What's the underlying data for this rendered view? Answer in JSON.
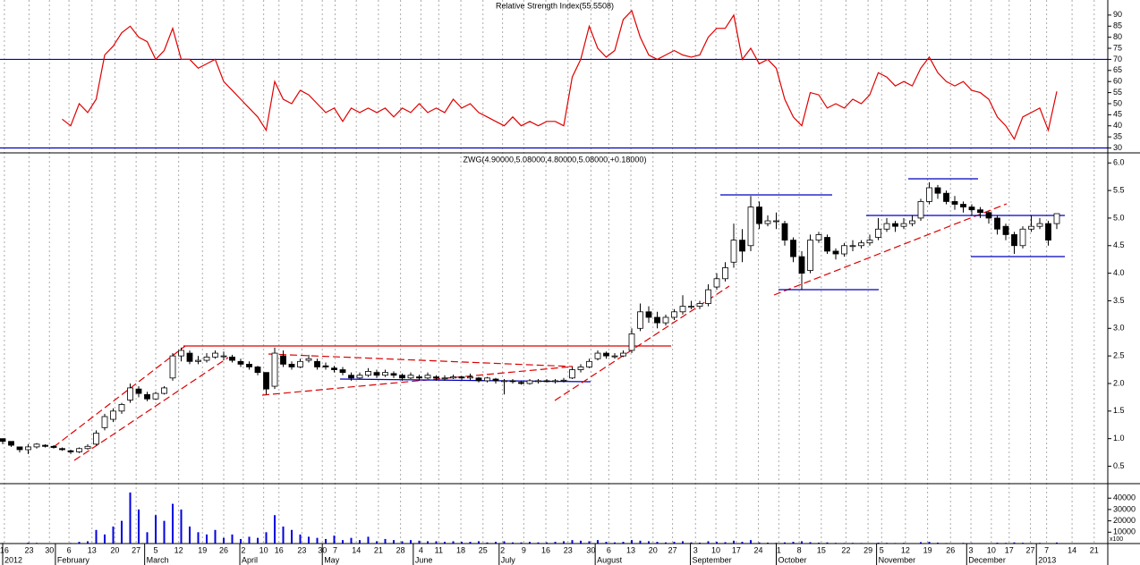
{
  "chart_data": {
    "type": "candlestick",
    "title": "ZWG(4.90000,5.08000,4.80000,5.08000,+0.18000)",
    "xlim": [
      0,
      130
    ],
    "xticks": [
      {
        "value": 0.2,
        "label": "16"
      },
      {
        "value": 3.1,
        "label": "23"
      },
      {
        "value": 5.5,
        "label": "30"
      },
      {
        "value": 7.8,
        "label": "6"
      },
      {
        "value": 10.5,
        "label": "13"
      },
      {
        "value": 13.2,
        "label": "20"
      },
      {
        "value": 15.7,
        "label": "27"
      },
      {
        "value": 18,
        "label": "5"
      },
      {
        "value": 20.7,
        "label": "12"
      },
      {
        "value": 23.5,
        "label": "19"
      },
      {
        "value": 26,
        "label": "26"
      },
      {
        "value": 28.3,
        "label": "2"
      },
      {
        "value": 30.7,
        "label": "10"
      },
      {
        "value": 32.5,
        "label": "16"
      },
      {
        "value": 35.2,
        "label": "23"
      },
      {
        "value": 37.6,
        "label": "30"
      },
      {
        "value": 39.1,
        "label": "7"
      },
      {
        "value": 41.6,
        "label": "14"
      },
      {
        "value": 44.2,
        "label": "21"
      },
      {
        "value": 46.8,
        "label": "28"
      },
      {
        "value": 49.2,
        "label": "4"
      },
      {
        "value": 51.3,
        "label": "11"
      },
      {
        "value": 53.9,
        "label": "18"
      },
      {
        "value": 56.5,
        "label": "25"
      },
      {
        "value": 58.8,
        "label": "2"
      },
      {
        "value": 61.3,
        "label": "9"
      },
      {
        "value": 63.9,
        "label": "16"
      },
      {
        "value": 66.5,
        "label": "23"
      },
      {
        "value": 69.2,
        "label": "30"
      },
      {
        "value": 71.3,
        "label": "6"
      },
      {
        "value": 73.9,
        "label": "13"
      },
      {
        "value": 76.5,
        "label": "20"
      },
      {
        "value": 78.8,
        "label": "27"
      },
      {
        "value": 81.5,
        "label": "3"
      },
      {
        "value": 83.9,
        "label": "10"
      },
      {
        "value": 86.3,
        "label": "17"
      },
      {
        "value": 88.9,
        "label": "24"
      },
      {
        "value": 91.3,
        "label": "1"
      },
      {
        "value": 93.7,
        "label": "8"
      },
      {
        "value": 96.3,
        "label": "15"
      },
      {
        "value": 99.2,
        "label": "22"
      },
      {
        "value": 101.8,
        "label": "29"
      },
      {
        "value": 103.4,
        "label": "5"
      },
      {
        "value": 106.2,
        "label": "12"
      },
      {
        "value": 108.8,
        "label": "19"
      },
      {
        "value": 111.5,
        "label": "26"
      },
      {
        "value": 113.9,
        "label": "3"
      },
      {
        "value": 116.3,
        "label": "10"
      },
      {
        "value": 118.4,
        "label": "17"
      },
      {
        "value": 120.9,
        "label": "27"
      },
      {
        "value": 122.8,
        "label": "7"
      },
      {
        "value": 125.8,
        "label": "14"
      },
      {
        "value": 128.4,
        "label": "21"
      }
    ],
    "months": [
      {
        "value": 0,
        "label": "2012"
      },
      {
        "value": 6.2,
        "label": "February"
      },
      {
        "value": 16.7,
        "label": "March"
      },
      {
        "value": 27.9,
        "label": "April"
      },
      {
        "value": 37.6,
        "label": "May"
      },
      {
        "value": 48.3,
        "label": "June"
      },
      {
        "value": 58.4,
        "label": "July"
      },
      {
        "value": 69.7,
        "label": "August"
      },
      {
        "value": 80.9,
        "label": "September"
      },
      {
        "value": 91,
        "label": "October"
      },
      {
        "value": 102.8,
        "label": "November"
      },
      {
        "value": 113.4,
        "label": "December"
      },
      {
        "value": 121.6,
        "label": "2013"
      }
    ],
    "grid": true,
    "ylim": [
      0.2,
      6.15
    ],
    "yticks": [
      0.5,
      {
        "value": 1,
        "label": "1.0"
      },
      1.5,
      {
        "value": 2,
        "label": "2.0"
      },
      2.5,
      {
        "value": 3,
        "label": "3.0"
      },
      3.5,
      {
        "value": 4,
        "label": "4.0"
      },
      4.5,
      {
        "value": 5,
        "label": "5.0"
      },
      5.5,
      {
        "value": 6,
        "label": "6.0"
      }
    ],
    "ohlc": [
      [
        1.0,
        1.0,
        0.9,
        0.95
      ],
      [
        0.95,
        0.95,
        0.85,
        0.88
      ],
      [
        0.85,
        0.85,
        0.75,
        0.8
      ],
      [
        0.8,
        0.9,
        0.72,
        0.85
      ],
      [
        0.85,
        0.92,
        0.82,
        0.9
      ],
      [
        0.88,
        0.9,
        0.84,
        0.86
      ],
      [
        0.86,
        0.88,
        0.82,
        0.84
      ],
      [
        0.82,
        0.84,
        0.78,
        0.8
      ],
      [
        0.78,
        0.8,
        0.72,
        0.76
      ],
      [
        0.76,
        0.84,
        0.74,
        0.82
      ],
      [
        0.82,
        0.9,
        0.8,
        0.86
      ],
      [
        0.9,
        1.15,
        0.88,
        1.1
      ],
      [
        1.2,
        1.45,
        1.15,
        1.4
      ],
      [
        1.35,
        1.55,
        1.3,
        1.5
      ],
      [
        1.5,
        1.65,
        1.45,
        1.62
      ],
      [
        1.7,
        2.0,
        1.65,
        1.92
      ],
      [
        1.9,
        1.95,
        1.75,
        1.82
      ],
      [
        1.8,
        1.85,
        1.68,
        1.72
      ],
      [
        1.72,
        1.85,
        1.7,
        1.82
      ],
      [
        1.82,
        1.95,
        1.8,
        1.92
      ],
      [
        2.1,
        2.55,
        2.05,
        2.5
      ],
      [
        2.5,
        2.65,
        2.4,
        2.6
      ],
      [
        2.55,
        2.6,
        2.35,
        2.4
      ],
      [
        2.4,
        2.5,
        2.35,
        2.42
      ],
      [
        2.42,
        2.55,
        2.38,
        2.48
      ],
      [
        2.48,
        2.6,
        2.45,
        2.55
      ],
      [
        2.5,
        2.58,
        2.42,
        2.5
      ],
      [
        2.48,
        2.52,
        2.38,
        2.42
      ],
      [
        2.4,
        2.45,
        2.3,
        2.35
      ],
      [
        2.35,
        2.4,
        2.25,
        2.3
      ],
      [
        2.3,
        2.32,
        2.15,
        2.2
      ],
      [
        2.2,
        2.2,
        1.8,
        1.9
      ],
      [
        1.95,
        2.65,
        1.9,
        2.55
      ],
      [
        2.5,
        2.6,
        2.3,
        2.35
      ],
      [
        2.35,
        2.4,
        2.25,
        2.3
      ],
      [
        2.3,
        2.45,
        2.28,
        2.4
      ],
      [
        2.42,
        2.52,
        2.38,
        2.45
      ],
      [
        2.4,
        2.45,
        2.25,
        2.3
      ],
      [
        2.32,
        2.38,
        2.25,
        2.3
      ],
      [
        2.28,
        2.32,
        2.2,
        2.25
      ],
      [
        2.25,
        2.3,
        2.15,
        2.2
      ],
      [
        2.15,
        2.2,
        2.05,
        2.1
      ],
      [
        2.1,
        2.2,
        2.08,
        2.15
      ],
      [
        2.15,
        2.28,
        2.12,
        2.22
      ],
      [
        2.2,
        2.25,
        2.1,
        2.15
      ],
      [
        2.15,
        2.25,
        2.12,
        2.2
      ],
      [
        2.18,
        2.22,
        2.1,
        2.15
      ],
      [
        2.15,
        2.18,
        2.05,
        2.1
      ],
      [
        2.1,
        2.2,
        2.08,
        2.15
      ],
      [
        2.12,
        2.16,
        2.05,
        2.1
      ],
      [
        2.1,
        2.2,
        2.08,
        2.15
      ],
      [
        2.12,
        2.15,
        2.05,
        2.1
      ],
      [
        2.1,
        2.15,
        2.05,
        2.1
      ],
      [
        2.1,
        2.16,
        2.08,
        2.12
      ],
      [
        2.12,
        2.14,
        2.06,
        2.1
      ],
      [
        2.1,
        2.18,
        2.06,
        2.12
      ],
      [
        2.1,
        2.12,
        2.02,
        2.05
      ],
      [
        2.05,
        2.12,
        2.02,
        2.1
      ],
      [
        2.08,
        2.1,
        2.0,
        2.05
      ],
      [
        2.05,
        2.08,
        1.8,
        2.05
      ],
      [
        2.05,
        2.08,
        2.0,
        2.04
      ],
      [
        2.02,
        2.05,
        1.98,
        2.0
      ],
      [
        2.0,
        2.08,
        1.98,
        2.05
      ],
      [
        2.04,
        2.08,
        2.0,
        2.05
      ],
      [
        2.05,
        2.08,
        2.02,
        2.04
      ],
      [
        2.04,
        2.08,
        2.0,
        2.05
      ],
      [
        2.05,
        2.1,
        2.02,
        2.06
      ],
      [
        2.1,
        2.3,
        2.08,
        2.25
      ],
      [
        2.25,
        2.35,
        2.2,
        2.3
      ],
      [
        2.3,
        2.45,
        2.28,
        2.4
      ],
      [
        2.45,
        2.6,
        2.42,
        2.55
      ],
      [
        2.55,
        2.58,
        2.45,
        2.5
      ],
      [
        2.5,
        2.55,
        2.45,
        2.5
      ],
      [
        2.5,
        2.6,
        2.48,
        2.55
      ],
      [
        2.6,
        3.0,
        2.55,
        2.9
      ],
      [
        3.0,
        3.45,
        2.95,
        3.3
      ],
      [
        3.3,
        3.4,
        3.1,
        3.2
      ],
      [
        3.2,
        3.3,
        3.0,
        3.1
      ],
      [
        3.1,
        3.25,
        3.05,
        3.2
      ],
      [
        3.2,
        3.35,
        3.15,
        3.3
      ],
      [
        3.3,
        3.6,
        3.25,
        3.4
      ],
      [
        3.4,
        3.5,
        3.35,
        3.4
      ],
      [
        3.4,
        3.5,
        3.35,
        3.45
      ],
      [
        3.45,
        3.8,
        3.4,
        3.7
      ],
      [
        3.75,
        4.0,
        3.7,
        3.9
      ],
      [
        3.9,
        4.2,
        3.85,
        4.1
      ],
      [
        4.2,
        4.9,
        4.1,
        4.6
      ],
      [
        4.6,
        4.8,
        4.2,
        4.4
      ],
      [
        4.5,
        5.4,
        4.4,
        5.2
      ],
      [
        5.2,
        5.3,
        4.8,
        4.9
      ],
      [
        4.9,
        5.05,
        4.85,
        4.95
      ],
      [
        4.95,
        5.1,
        4.8,
        4.95
      ],
      [
        4.9,
        4.95,
        4.5,
        4.6
      ],
      [
        4.6,
        4.65,
        4.2,
        4.3
      ],
      [
        4.3,
        4.4,
        3.7,
        4.0
      ],
      [
        4.05,
        4.7,
        4.0,
        4.6
      ],
      [
        4.6,
        4.75,
        4.55,
        4.7
      ],
      [
        4.65,
        4.7,
        4.35,
        4.4
      ],
      [
        4.4,
        4.45,
        4.25,
        4.35
      ],
      [
        4.35,
        4.55,
        4.3,
        4.5
      ],
      [
        4.5,
        4.6,
        4.4,
        4.5
      ],
      [
        4.5,
        4.6,
        4.45,
        4.55
      ],
      [
        4.55,
        4.7,
        4.5,
        4.6
      ],
      [
        4.65,
        5.0,
        4.6,
        4.8
      ],
      [
        4.8,
        5.0,
        4.75,
        4.9
      ],
      [
        4.9,
        4.95,
        4.75,
        4.85
      ],
      [
        4.85,
        5.0,
        4.8,
        4.9
      ],
      [
        4.9,
        5.05,
        4.85,
        4.95
      ],
      [
        5.0,
        5.35,
        4.95,
        5.3
      ],
      [
        5.3,
        5.65,
        5.25,
        5.55
      ],
      [
        5.55,
        5.6,
        5.35,
        5.45
      ],
      [
        5.45,
        5.5,
        5.25,
        5.3
      ],
      [
        5.3,
        5.4,
        5.15,
        5.25
      ],
      [
        5.25,
        5.3,
        5.1,
        5.2
      ],
      [
        5.2,
        5.25,
        5.05,
        5.15
      ],
      [
        5.15,
        5.2,
        5.0,
        5.1
      ],
      [
        5.1,
        5.12,
        4.9,
        5.0
      ],
      [
        5.0,
        5.05,
        4.7,
        4.8
      ],
      [
        4.85,
        4.9,
        4.6,
        4.7
      ],
      [
        4.7,
        4.75,
        4.35,
        4.5
      ],
      [
        4.5,
        4.85,
        4.45,
        4.8
      ],
      [
        4.8,
        5.05,
        4.75,
        4.85
      ],
      [
        4.85,
        5.0,
        4.8,
        4.9
      ],
      [
        4.9,
        4.95,
        4.5,
        4.6
      ],
      [
        4.9,
        5.08,
        4.8,
        5.08
      ]
    ],
    "rsi": {
      "title": "Relative Strength Index(55.5508)",
      "color": "#e00000",
      "level_color": "#0000c0",
      "levels": [
        70,
        30
      ],
      "ylim": [
        29,
        96
      ],
      "yticks": [
        30,
        35,
        40,
        45,
        50,
        55,
        60,
        65,
        70,
        75,
        80,
        85,
        90
      ],
      "values": [
        null,
        null,
        null,
        null,
        null,
        null,
        null,
        43,
        40,
        50,
        46,
        52,
        72,
        76,
        82,
        85,
        80,
        78,
        70,
        74,
        84,
        70,
        70,
        66,
        68,
        70,
        60,
        56,
        52,
        48,
        44,
        38,
        60,
        52,
        50,
        56,
        54,
        50,
        46,
        48,
        42,
        48,
        46,
        48,
        46,
        48,
        44,
        48,
        46,
        50,
        46,
        48,
        46,
        52,
        48,
        50,
        46,
        44,
        42,
        40,
        44,
        40,
        42,
        40,
        42,
        42,
        40,
        62,
        70,
        85,
        75,
        71,
        74,
        88,
        92,
        80,
        72,
        70,
        72,
        74,
        72,
        71,
        72,
        80,
        84,
        84,
        90,
        70,
        75,
        68,
        70,
        66,
        52,
        44,
        40,
        55,
        54,
        48,
        50,
        48,
        52,
        50,
        54,
        64,
        62,
        58,
        60,
        58,
        66,
        71,
        64,
        60,
        58,
        60,
        56,
        55,
        52,
        44,
        40,
        34,
        44,
        46,
        48,
        38,
        55.5508
      ]
    },
    "volume": {
      "color": "#0000e0",
      "unit_label": "x100",
      "ylim": [
        0,
        52000
      ],
      "yticks": [
        10000,
        20000,
        30000,
        40000
      ],
      "values": [
        500,
        400,
        300,
        800,
        600,
        300,
        400,
        300,
        500,
        1500,
        2000,
        12000,
        8000,
        15000,
        20000,
        45000,
        30000,
        10000,
        25000,
        20000,
        35000,
        30000,
        15000,
        10000,
        8000,
        12000,
        5000,
        8000,
        4000,
        6000,
        5000,
        10000,
        25000,
        15000,
        12000,
        8000,
        6000,
        5000,
        4000,
        7000,
        3000,
        5000,
        3000,
        6000,
        2000,
        4000,
        3000,
        2000,
        3000,
        2500,
        2000,
        2000,
        1500,
        2000,
        1500,
        1500,
        2000,
        1000,
        1500,
        2000,
        1000,
        1000,
        1500,
        1000,
        1000,
        1500,
        2000,
        3000,
        2500,
        2000,
        3000,
        1500,
        1000,
        1500,
        3000,
        2500,
        2000,
        1500,
        1000,
        1500,
        2000,
        1000,
        800,
        2000,
        1500,
        1200,
        2500,
        1500,
        3000,
        1000,
        800,
        600,
        1000,
        1500,
        2000,
        1200,
        800,
        1000,
        600,
        500,
        600,
        500,
        400,
        800,
        600,
        500,
        600,
        400,
        1200,
        1500,
        800,
        500,
        400,
        600,
        500,
        400,
        300,
        800,
        600,
        1000,
        700,
        500,
        600,
        400,
        900
      ]
    }
  }
}
